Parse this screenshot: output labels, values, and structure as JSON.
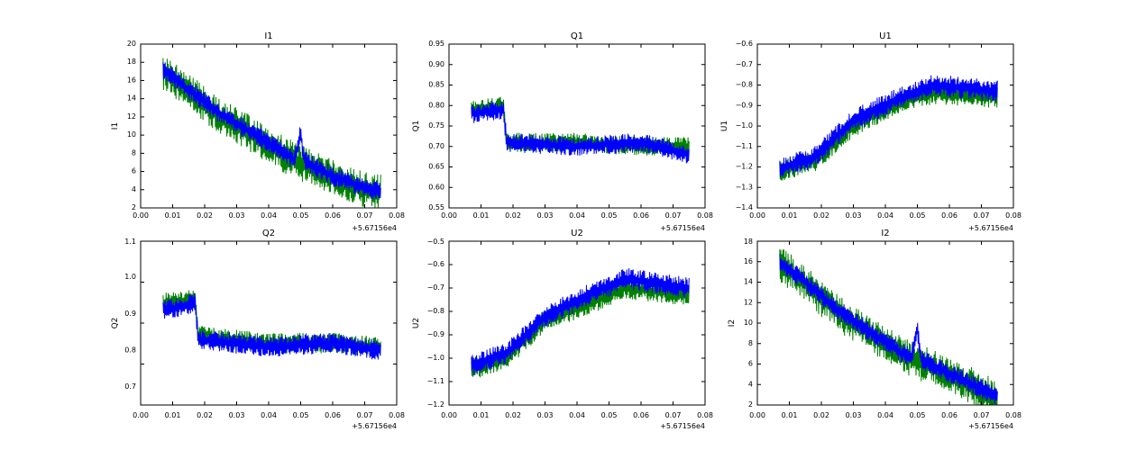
{
  "colors": {
    "series1": "#0000ff",
    "series2": "#008000"
  },
  "chart_data": [
    {
      "type": "line",
      "title": "I1",
      "ylabel": "I1",
      "xlabel": "",
      "xlim": [
        0.0,
        0.08
      ],
      "ylim": [
        2,
        20
      ],
      "xticks": [
        "0.00",
        "0.01",
        "0.02",
        "0.03",
        "0.04",
        "0.05",
        "0.06",
        "0.07",
        "0.08"
      ],
      "yticks": [
        "2",
        "4",
        "6",
        "8",
        "10",
        "12",
        "14",
        "16",
        "18",
        "20"
      ],
      "x_offset_label": "+5.67156e4",
      "series": [
        {
          "color": "#0000ff",
          "x": [
            0.007,
            0.015,
            0.025,
            0.035,
            0.045,
            0.048,
            0.049,
            0.05,
            0.051,
            0.052,
            0.06,
            0.07,
            0.075
          ],
          "y": [
            17.2,
            15.0,
            12.3,
            10.2,
            8.1,
            7.2,
            8.6,
            10.3,
            7.4,
            7.0,
            5.5,
            4.2,
            3.9
          ],
          "noise": 0.9
        },
        {
          "color": "#008000",
          "x": [
            0.007,
            0.015,
            0.025,
            0.035,
            0.045,
            0.05,
            0.06,
            0.07,
            0.075
          ],
          "y": [
            17.0,
            14.8,
            12.0,
            10.0,
            7.8,
            6.9,
            5.3,
            4.0,
            3.7
          ],
          "noise": 0.25
        }
      ]
    },
    {
      "type": "line",
      "title": "Q1",
      "ylabel": "Q1",
      "xlabel": "",
      "xlim": [
        0.0,
        0.08
      ],
      "ylim": [
        0.55,
        0.95
      ],
      "xticks": [
        "0.00",
        "0.01",
        "0.02",
        "0.03",
        "0.04",
        "0.05",
        "0.06",
        "0.07",
        "0.08"
      ],
      "yticks": [
        "0.55",
        "0.60",
        "0.65",
        "0.70",
        "0.75",
        "0.80",
        "0.85",
        "0.90",
        "0.95"
      ],
      "x_offset_label": "+5.67156e4",
      "series": [
        {
          "color": "#0000ff",
          "x": [
            0.007,
            0.017,
            0.018,
            0.04,
            0.06,
            0.075
          ],
          "y": [
            0.78,
            0.79,
            0.71,
            0.7,
            0.71,
            0.68
          ],
          "noise": 0.13
        },
        {
          "color": "#008000",
          "x": [
            0.007,
            0.017,
            0.018,
            0.04,
            0.06,
            0.075
          ],
          "y": [
            0.79,
            0.8,
            0.71,
            0.71,
            0.7,
            0.7
          ],
          "noise": 0.13
        }
      ]
    },
    {
      "type": "line",
      "title": "U1",
      "ylabel": "U1",
      "xlabel": "",
      "xlim": [
        0.0,
        0.08
      ],
      "ylim": [
        -1.4,
        -0.6
      ],
      "xticks": [
        "0.00",
        "0.01",
        "0.02",
        "0.03",
        "0.04",
        "0.05",
        "0.06",
        "0.07",
        "0.08"
      ],
      "yticks": [
        "−1.4",
        "−1.3",
        "−1.2",
        "−1.1",
        "−1.0",
        "−0.9",
        "−0.8",
        "−0.7",
        "−0.6"
      ],
      "x_offset_label": "+5.67156e4",
      "series": [
        {
          "color": "#0000ff",
          "x": [
            0.007,
            0.018,
            0.03,
            0.045,
            0.055,
            0.075
          ],
          "y": [
            -1.21,
            -1.15,
            -0.97,
            -0.86,
            -0.8,
            -0.83
          ],
          "noise": 0.15
        },
        {
          "color": "#008000",
          "x": [
            0.007,
            0.018,
            0.03,
            0.045,
            0.055,
            0.075
          ],
          "y": [
            -1.22,
            -1.17,
            -1.0,
            -0.88,
            -0.84,
            -0.86
          ],
          "noise": 0.15
        }
      ]
    },
    {
      "type": "line",
      "title": "Q2",
      "ylabel": "Q2",
      "xlabel": "",
      "xlim": [
        0.0,
        0.08
      ],
      "ylim": [
        0.65,
        1.1
      ],
      "xticks": [
        "0.00",
        "0.01",
        "0.02",
        "0.03",
        "0.04",
        "0.05",
        "0.06",
        "0.07",
        "0.08"
      ],
      "yticks": [
        "0.7",
        "0.8",
        "0.9",
        "1.0",
        "1.1"
      ],
      "x_offset_label": "+5.67156e4",
      "series": [
        {
          "color": "#0000ff",
          "x": [
            0.007,
            0.017,
            0.018,
            0.04,
            0.06,
            0.075
          ],
          "y": [
            0.91,
            0.93,
            0.83,
            0.81,
            0.82,
            0.8
          ],
          "noise": 0.14
        },
        {
          "color": "#008000",
          "x": [
            0.007,
            0.017,
            0.018,
            0.04,
            0.06,
            0.075
          ],
          "y": [
            0.93,
            0.94,
            0.84,
            0.82,
            0.82,
            0.81
          ],
          "noise": 0.14
        }
      ]
    },
    {
      "type": "line",
      "title": "U2",
      "ylabel": "U2",
      "xlabel": "",
      "xlim": [
        0.0,
        0.08
      ],
      "ylim": [
        -1.2,
        -0.5
      ],
      "xticks": [
        "0.00",
        "0.01",
        "0.02",
        "0.03",
        "0.04",
        "0.05",
        "0.06",
        "0.07",
        "0.08"
      ],
      "yticks": [
        "−1.2",
        "−1.1",
        "−1.0",
        "−0.9",
        "−0.8",
        "−0.7",
        "−0.6",
        "−0.5"
      ],
      "x_offset_label": "+5.67156e4",
      "series": [
        {
          "color": "#0000ff",
          "x": [
            0.007,
            0.018,
            0.03,
            0.045,
            0.055,
            0.075
          ],
          "y": [
            -1.03,
            -0.98,
            -0.82,
            -0.72,
            -0.66,
            -0.7
          ],
          "noise": 0.15
        },
        {
          "color": "#008000",
          "x": [
            0.007,
            0.018,
            0.03,
            0.045,
            0.055,
            0.075
          ],
          "y": [
            -1.05,
            -1.0,
            -0.84,
            -0.76,
            -0.7,
            -0.73
          ],
          "noise": 0.15
        }
      ]
    },
    {
      "type": "line",
      "title": "I2",
      "ylabel": "I2",
      "xlabel": "",
      "xlim": [
        0.0,
        0.08
      ],
      "ylim": [
        2,
        18
      ],
      "xticks": [
        "0.00",
        "0.01",
        "0.02",
        "0.03",
        "0.04",
        "0.05",
        "0.06",
        "0.07",
        "0.08"
      ],
      "yticks": [
        "2",
        "4",
        "6",
        "8",
        "10",
        "12",
        "14",
        "16",
        "18"
      ],
      "x_offset_label": "+5.67156e4",
      "series": [
        {
          "color": "#0000ff",
          "x": [
            0.007,
            0.015,
            0.025,
            0.035,
            0.045,
            0.048,
            0.049,
            0.05,
            0.051,
            0.052,
            0.06,
            0.07,
            0.075
          ],
          "y": [
            16.0,
            14.0,
            11.3,
            9.2,
            7.1,
            6.7,
            7.6,
            9.6,
            6.5,
            6.3,
            5.1,
            3.6,
            2.8
          ],
          "noise": 0.9
        },
        {
          "color": "#008000",
          "x": [
            0.007,
            0.015,
            0.025,
            0.035,
            0.045,
            0.05,
            0.06,
            0.07,
            0.075
          ],
          "y": [
            15.8,
            13.8,
            11.0,
            9.0,
            6.9,
            6.2,
            5.0,
            3.4,
            2.6
          ],
          "noise": 0.25
        }
      ]
    }
  ]
}
